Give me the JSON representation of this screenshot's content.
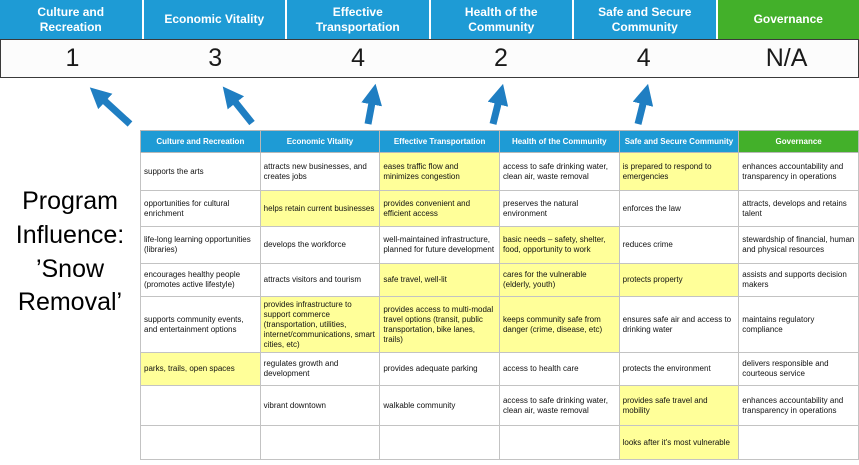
{
  "title": {
    "lines": [
      "Program",
      "Influence:",
      "’Snow",
      "Removal’"
    ]
  },
  "colors": {
    "header_blue": "#1E9BD5",
    "header_green": "#43B02A",
    "arrow_blue": "#1F7EC2",
    "highlight_yellow": "#FFFF99"
  },
  "categories": [
    {
      "label": "Culture and Recreation",
      "score": "1"
    },
    {
      "label": "Economic Vitality",
      "score": "3"
    },
    {
      "label": "Effective Transportation",
      "score": "4"
    },
    {
      "label": "Health of the Community",
      "score": "2"
    },
    {
      "label": "Safe and Secure Community",
      "score": "4"
    },
    {
      "label": "Governance",
      "score": "N/A"
    }
  ],
  "table": {
    "headers": [
      "Culture and Recreation",
      "Economic Vitality",
      "Effective Transportation",
      "Health of the Community",
      "Safe and Secure Community",
      "Governance"
    ],
    "rows": [
      [
        {
          "text": "supports the arts",
          "highlight": false
        },
        {
          "text": "attracts new businesses, and creates jobs",
          "highlight": false
        },
        {
          "text": "eases traffic flow and minimizes congestion",
          "highlight": true
        },
        {
          "text": "access to safe drinking water, clean air, waste removal",
          "highlight": false
        },
        {
          "text": "is prepared to respond to emergencies",
          "highlight": true
        },
        {
          "text": "enhances accountability and transparency in operations",
          "highlight": false
        }
      ],
      [
        {
          "text": "opportunities for cultural enrichment",
          "highlight": false
        },
        {
          "text": "helps retain current businesses",
          "highlight": true
        },
        {
          "text": "provides convenient and efficient access",
          "highlight": true
        },
        {
          "text": "preserves the natural environment",
          "highlight": false
        },
        {
          "text": "enforces the law",
          "highlight": false
        },
        {
          "text": "attracts, develops and retains talent",
          "highlight": false
        }
      ],
      [
        {
          "text": "life-long learning opportunities (libraries)",
          "highlight": false
        },
        {
          "text": "develops the workforce",
          "highlight": false
        },
        {
          "text": "well-maintained infrastructure, planned for future development",
          "highlight": false
        },
        {
          "text": "basic needs – safety, shelter, food, opportunity to work",
          "highlight": true
        },
        {
          "text": "reduces crime",
          "highlight": false
        },
        {
          "text": "stewardship of financial, human and physical resources",
          "highlight": false
        }
      ],
      [
        {
          "text": "encourages healthy people (promotes active lifestyle)",
          "highlight": false
        },
        {
          "text": "attracts visitors and tourism",
          "highlight": false
        },
        {
          "text": "safe travel, well-lit",
          "highlight": true
        },
        {
          "text": "cares for the vulnerable (elderly, youth)",
          "highlight": true
        },
        {
          "text": "protects property",
          "highlight": true
        },
        {
          "text": "assists and supports decision makers",
          "highlight": false
        }
      ],
      [
        {
          "text": "supports community events, and entertainment options",
          "highlight": false
        },
        {
          "text": "provides infrastructure to support commerce (transportation, utilities, internet/communications, smart cities, etc)",
          "highlight": true
        },
        {
          "text": "provides access to multi-modal travel options (transit, public transportation, bike lanes, trails)",
          "highlight": true
        },
        {
          "text": "keeps community safe from danger (crime, disease, etc)",
          "highlight": true
        },
        {
          "text": "ensures safe air and access to drinking water",
          "highlight": false
        },
        {
          "text": "maintains regulatory compliance",
          "highlight": false
        }
      ],
      [
        {
          "text": "parks, trails, open spaces",
          "highlight": true
        },
        {
          "text": "regulates growth and development",
          "highlight": false
        },
        {
          "text": "provides adequate parking",
          "highlight": false
        },
        {
          "text": "access to health care",
          "highlight": false
        },
        {
          "text": "protects the environment",
          "highlight": false
        },
        {
          "text": "delivers responsible and courteous service",
          "highlight": false
        }
      ],
      [
        {
          "text": "",
          "highlight": false
        },
        {
          "text": "vibrant downtown",
          "highlight": false
        },
        {
          "text": "walkable community",
          "highlight": false
        },
        {
          "text": "access to safe drinking water, clean air, waste removal",
          "highlight": false
        },
        {
          "text": "provides safe travel and mobility",
          "highlight": true
        },
        {
          "text": "enhances accountability and transparency in operations",
          "highlight": false
        }
      ],
      [
        {
          "text": "",
          "highlight": false
        },
        {
          "text": "",
          "highlight": false
        },
        {
          "text": "",
          "highlight": false
        },
        {
          "text": "",
          "highlight": false
        },
        {
          "text": "looks after it's most vulnerable",
          "highlight": true
        },
        {
          "text": "",
          "highlight": false
        }
      ]
    ]
  }
}
